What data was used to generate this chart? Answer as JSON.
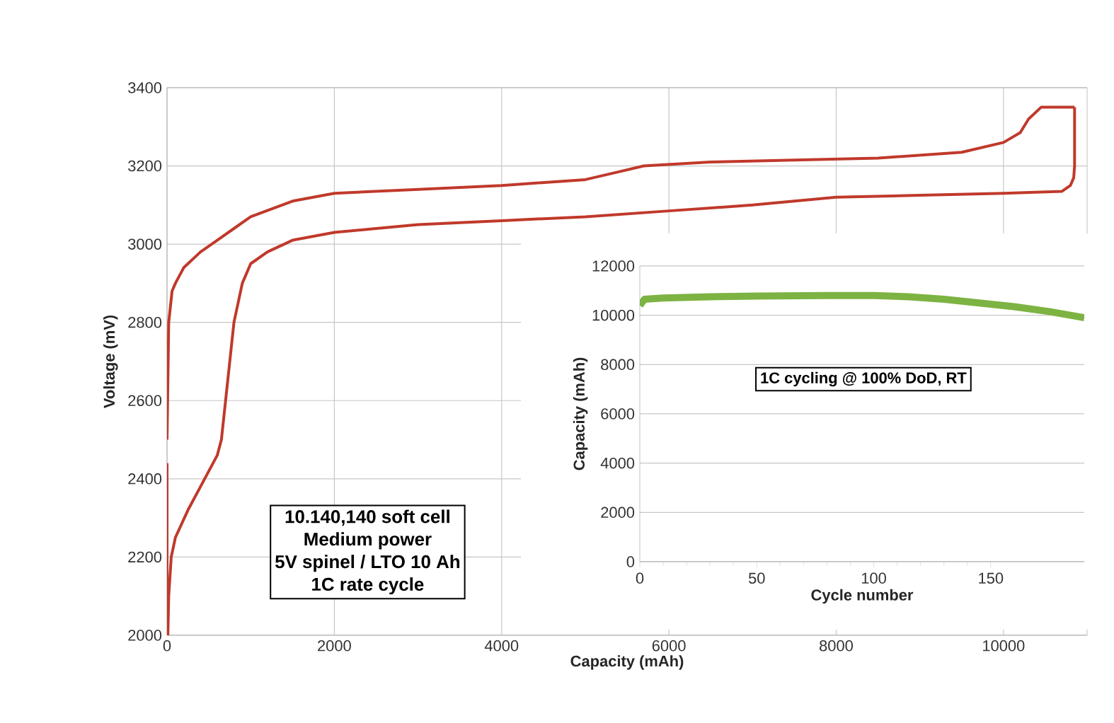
{
  "chart_data": [
    {
      "type": "line",
      "xlabel": "Capacity (mAh)",
      "ylabel": "Voltage (mV)",
      "xlim": [
        0,
        11000
      ],
      "ylim": [
        2000,
        3400
      ],
      "xticks": [
        0,
        2000,
        4000,
        6000,
        8000,
        10000
      ],
      "yticks": [
        2000,
        2200,
        2400,
        2600,
        2800,
        3000,
        3200,
        3400
      ],
      "grid": true,
      "series": [
        {
          "color": "#c0392b",
          "x": [
            0,
            20,
            60,
            100,
            200,
            400,
            600,
            800,
            1000,
            1500,
            2000,
            3000,
            4000,
            5000,
            5400,
            5700,
            6500,
            7500,
            8500,
            9500,
            10000,
            10200,
            10300,
            10450,
            10850
          ],
          "values": [
            2500,
            2800,
            2880,
            2900,
            2940,
            2980,
            3010,
            3040,
            3070,
            3110,
            3130,
            3140,
            3150,
            3165,
            3185,
            3200,
            3210,
            3215,
            3220,
            3235,
            3260,
            3285,
            3320,
            3350,
            3350
          ]
        },
        {
          "color": "#c0392b",
          "x": [
            10850,
            10850,
            10840,
            10800,
            10700,
            10000,
            9000,
            8000,
            7000,
            6000,
            5000,
            4000,
            3000,
            2500,
            2000,
            1500,
            1200,
            1000,
            900,
            800,
            700,
            650,
            600,
            400,
            250,
            100,
            50,
            20,
            10
          ],
          "values": [
            3350,
            3200,
            3170,
            3150,
            3135,
            3130,
            3125,
            3120,
            3100,
            3085,
            3070,
            3060,
            3050,
            3040,
            3030,
            3010,
            2980,
            2950,
            2900,
            2800,
            2600,
            2500,
            2460,
            2380,
            2320,
            2250,
            2200,
            2100,
            2000
          ]
        },
        {
          "color": "#c0392b",
          "x": [
            0,
            0
          ],
          "values": [
            2440,
            2000
          ]
        }
      ],
      "annotations": [
        "10.140,140 soft cell",
        "Medium power",
        "5V spinel / LTO 10 Ah",
        "1C rate cycle"
      ]
    },
    {
      "type": "line",
      "xlabel": "Cycle number",
      "ylabel": "Capacity (mAh)",
      "xlim": [
        0,
        190
      ],
      "ylim": [
        0,
        12000
      ],
      "xticks": [
        0,
        50,
        100,
        150
      ],
      "yticks": [
        0,
        2000,
        4000,
        6000,
        8000,
        10000,
        12000
      ],
      "grid": "y",
      "series": [
        {
          "color": "#7cb342",
          "x": [
            0,
            2,
            10,
            30,
            50,
            80,
            100,
            115,
            130,
            145,
            160,
            175,
            190
          ],
          "values": [
            10400,
            10650,
            10700,
            10750,
            10780,
            10800,
            10800,
            10750,
            10650,
            10500,
            10350,
            10150,
            9900
          ]
        }
      ],
      "annotations": [
        "1C cycling @ 100% DoD, RT"
      ]
    }
  ]
}
